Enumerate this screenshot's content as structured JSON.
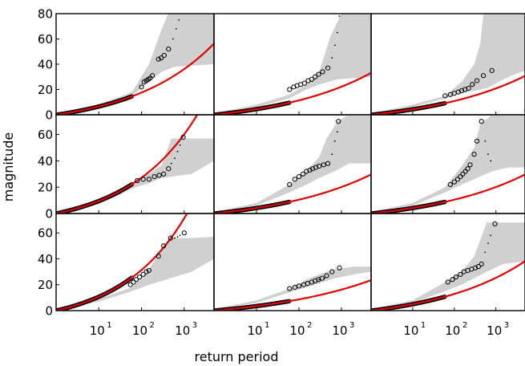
{
  "chart_data": {
    "type": "scatter",
    "layout": {
      "rows": 3,
      "cols": 3
    },
    "xlabel": "return period",
    "ylabel": "magnitude",
    "xscale": "log",
    "xlim": [
      1,
      5000
    ],
    "x_tick_values": [
      10,
      100,
      1000
    ],
    "x_tick_labels": [
      {
        "base": "10",
        "exp": "1"
      },
      {
        "base": "10",
        "exp": "2"
      },
      {
        "base": "10",
        "exp": "3"
      }
    ],
    "row_ylim": [
      [
        0,
        80
      ],
      [
        0,
        75
      ],
      [
        0,
        75
      ]
    ],
    "row_y_ticks": [
      [
        0,
        20,
        40,
        60,
        80
      ],
      [
        0,
        20,
        40,
        60
      ],
      [
        0,
        20,
        40,
        60
      ]
    ],
    "colors": {
      "fit": "#dd0000",
      "band": "#d0d0d0",
      "points": "#000000",
      "frame": "#000000"
    },
    "panels": [
      {
        "row": 0,
        "col": 0,
        "fit": {
          "a": 9.5,
          "b": 4.4
        },
        "band_upper": [
          [
            1,
            1
          ],
          [
            10,
            8
          ],
          [
            60,
            18
          ],
          [
            150,
            40
          ],
          [
            300,
            68
          ],
          [
            420,
            80
          ],
          [
            5000,
            80
          ]
        ],
        "band_lower": [
          [
            1,
            0.5
          ],
          [
            10,
            6
          ],
          [
            60,
            15
          ],
          [
            150,
            26
          ],
          [
            300,
            34
          ],
          [
            600,
            38
          ],
          [
            5000,
            40
          ]
        ],
        "circles": [
          [
            100,
            22
          ],
          [
            115,
            26
          ],
          [
            130,
            27
          ],
          [
            145,
            28
          ],
          [
            160,
            29
          ],
          [
            180,
            31
          ],
          [
            250,
            44
          ],
          [
            290,
            45
          ],
          [
            340,
            47
          ],
          [
            430,
            52
          ]
        ],
        "dots": [
          [
            550,
            60
          ],
          [
            650,
            68
          ],
          [
            750,
            75
          ]
        ]
      },
      {
        "row": 0,
        "col": 1,
        "fit": {
          "a": 8.0,
          "b": 5.2
        },
        "band_upper": [
          [
            1,
            1
          ],
          [
            10,
            8
          ],
          [
            60,
            16
          ],
          [
            150,
            24
          ],
          [
            300,
            34
          ],
          [
            550,
            62
          ],
          [
            1000,
            80
          ],
          [
            5000,
            80
          ]
        ],
        "band_lower": [
          [
            1,
            0.5
          ],
          [
            10,
            6
          ],
          [
            60,
            13
          ],
          [
            150,
            20
          ],
          [
            300,
            24
          ],
          [
            800,
            28
          ],
          [
            5000,
            30
          ]
        ],
        "circles": [
          [
            60,
            20
          ],
          [
            75,
            22
          ],
          [
            90,
            23
          ],
          [
            110,
            24
          ],
          [
            135,
            25
          ],
          [
            165,
            27
          ],
          [
            200,
            28
          ],
          [
            240,
            30
          ],
          [
            290,
            32
          ],
          [
            360,
            34
          ],
          [
            480,
            37
          ]
        ],
        "dots": [
          [
            600,
            45
          ],
          [
            700,
            55
          ],
          [
            800,
            65
          ],
          [
            900,
            78
          ]
        ]
      },
      {
        "row": 0,
        "col": 2,
        "fit": {
          "a": 8.3,
          "b": 5.5
        },
        "band_upper": [
          [
            1,
            1
          ],
          [
            10,
            8
          ],
          [
            60,
            15
          ],
          [
            150,
            26
          ],
          [
            300,
            40
          ],
          [
            420,
            56
          ],
          [
            500,
            80
          ],
          [
            5000,
            80
          ]
        ],
        "band_lower": [
          [
            1,
            0.5
          ],
          [
            10,
            6
          ],
          [
            60,
            13
          ],
          [
            150,
            17
          ],
          [
            300,
            19
          ],
          [
            600,
            21
          ],
          [
            2000,
            30
          ],
          [
            5000,
            35
          ]
        ],
        "circles": [
          [
            60,
            15
          ],
          [
            80,
            16
          ],
          [
            100,
            17
          ],
          [
            125,
            18
          ],
          [
            150,
            19
          ],
          [
            180,
            20
          ],
          [
            220,
            21
          ],
          [
            270,
            24
          ],
          [
            350,
            27
          ],
          [
            500,
            31
          ],
          [
            800,
            35
          ]
        ],
        "dots": [
          [
            200,
            21
          ],
          [
            300,
            24
          ]
        ]
      },
      {
        "row": 1,
        "col": 0,
        "fit": {
          "a": 11.0,
          "b": 3.7
        },
        "band_upper": [
          [
            1,
            1
          ],
          [
            10,
            9
          ],
          [
            60,
            24
          ],
          [
            150,
            30
          ],
          [
            300,
            37
          ],
          [
            500,
            57
          ],
          [
            5000,
            57
          ]
        ],
        "band_lower": [
          [
            1,
            0.5
          ],
          [
            10,
            7
          ],
          [
            60,
            19
          ],
          [
            150,
            23
          ],
          [
            300,
            27
          ],
          [
            1500,
            30
          ],
          [
            5000,
            40
          ]
        ],
        "circles": [
          [
            80,
            25
          ],
          [
            110,
            26
          ],
          [
            150,
            26
          ],
          [
            200,
            28
          ],
          [
            260,
            29
          ],
          [
            330,
            30
          ],
          [
            430,
            34
          ],
          [
            950,
            58
          ]
        ],
        "dots": [
          [
            500,
            38
          ],
          [
            600,
            42
          ],
          [
            700,
            47
          ],
          [
            800,
            52
          ]
        ]
      },
      {
        "row": 1,
        "col": 1,
        "fit": {
          "a": 8.0,
          "b": 5.5
        },
        "band_upper": [
          [
            1,
            1
          ],
          [
            10,
            8
          ],
          [
            60,
            22
          ],
          [
            150,
            32
          ],
          [
            300,
            43
          ],
          [
            450,
            57
          ],
          [
            800,
            70
          ],
          [
            1500,
            75
          ],
          [
            5000,
            75
          ]
        ],
        "band_lower": [
          [
            1,
            0.5
          ],
          [
            10,
            6
          ],
          [
            60,
            16
          ],
          [
            150,
            22
          ],
          [
            300,
            27
          ],
          [
            800,
            33
          ],
          [
            1500,
            38
          ],
          [
            5000,
            38
          ]
        ],
        "circles": [
          [
            60,
            22
          ],
          [
            80,
            26
          ],
          [
            100,
            28
          ],
          [
            125,
            30
          ],
          [
            150,
            32
          ],
          [
            180,
            33
          ],
          [
            210,
            34
          ],
          [
            250,
            35
          ],
          [
            300,
            36
          ],
          [
            380,
            37
          ],
          [
            480,
            38
          ],
          [
            850,
            70
          ]
        ],
        "dots": [
          [
            600,
            45
          ],
          [
            700,
            55
          ],
          [
            800,
            62
          ]
        ]
      },
      {
        "row": 1,
        "col": 2,
        "fit": {
          "a": 8.0,
          "b": 5.5
        },
        "band_upper": [
          [
            1,
            1
          ],
          [
            10,
            8
          ],
          [
            60,
            20
          ],
          [
            150,
            36
          ],
          [
            300,
            50
          ],
          [
            420,
            68
          ],
          [
            800,
            75
          ],
          [
            5000,
            75
          ]
        ],
        "band_lower": [
          [
            1,
            0.5
          ],
          [
            10,
            6
          ],
          [
            60,
            16
          ],
          [
            150,
            22
          ],
          [
            300,
            26
          ],
          [
            800,
            32
          ],
          [
            2000,
            35
          ],
          [
            5000,
            35
          ]
        ],
        "circles": [
          [
            80,
            22
          ],
          [
            100,
            24
          ],
          [
            120,
            26
          ],
          [
            140,
            28
          ],
          [
            160,
            30
          ],
          [
            185,
            32
          ],
          [
            210,
            34
          ],
          [
            240,
            37
          ],
          [
            300,
            45
          ],
          [
            350,
            55
          ],
          [
            450,
            70
          ]
        ],
        "dots": [
          [
            550,
            55
          ],
          [
            650,
            45
          ],
          [
            750,
            40
          ]
        ]
      },
      {
        "row": 2,
        "col": 0,
        "fit": {
          "a": 11.5,
          "b": 3.5
        },
        "band_upper": [
          [
            1,
            1
          ],
          [
            10,
            9
          ],
          [
            60,
            18
          ],
          [
            150,
            32
          ],
          [
            300,
            48
          ],
          [
            500,
            56
          ],
          [
            1500,
            56
          ],
          [
            5000,
            57
          ]
        ],
        "band_lower": [
          [
            1,
            0.5
          ],
          [
            10,
            7
          ],
          [
            60,
            15
          ],
          [
            150,
            20
          ],
          [
            300,
            23
          ],
          [
            600,
            26
          ],
          [
            1500,
            30
          ],
          [
            5000,
            40
          ]
        ],
        "circles": [
          [
            55,
            20
          ],
          [
            65,
            22
          ],
          [
            75,
            24
          ],
          [
            90,
            26
          ],
          [
            110,
            28
          ],
          [
            130,
            30
          ],
          [
            150,
            31
          ],
          [
            250,
            42
          ],
          [
            330,
            50
          ],
          [
            480,
            56
          ],
          [
            1000,
            60
          ]
        ],
        "dots": [
          [
            600,
            56
          ],
          [
            700,
            57
          ],
          [
            800,
            58
          ]
        ]
      },
      {
        "row": 2,
        "col": 1,
        "fit": {
          "a": 7.5,
          "b": 6.0
        },
        "band_upper": [
          [
            1,
            1
          ],
          [
            10,
            8
          ],
          [
            60,
            17
          ],
          [
            150,
            24
          ],
          [
            300,
            28
          ],
          [
            700,
            32
          ],
          [
            2000,
            34
          ],
          [
            5000,
            34
          ]
        ],
        "band_lower": [
          [
            1,
            0.5
          ],
          [
            10,
            6
          ],
          [
            60,
            14
          ],
          [
            150,
            18
          ],
          [
            300,
            21
          ],
          [
            700,
            25
          ],
          [
            2000,
            28
          ],
          [
            5000,
            30
          ]
        ],
        "circles": [
          [
            60,
            17
          ],
          [
            80,
            18
          ],
          [
            100,
            19
          ],
          [
            130,
            20
          ],
          [
            160,
            21
          ],
          [
            200,
            22
          ],
          [
            240,
            23
          ],
          [
            290,
            24
          ],
          [
            350,
            25
          ],
          [
            450,
            27
          ],
          [
            600,
            30
          ],
          [
            900,
            33
          ]
        ],
        "dots": [
          [
            300,
            24
          ],
          [
            400,
            25
          ]
        ]
      },
      {
        "row": 2,
        "col": 2,
        "fit": {
          "a": 8.5,
          "b": 5.0
        },
        "band_upper": [
          [
            1,
            1
          ],
          [
            10,
            8
          ],
          [
            60,
            22
          ],
          [
            150,
            30
          ],
          [
            300,
            42
          ],
          [
            600,
            68
          ],
          [
            5000,
            68
          ]
        ],
        "band_lower": [
          [
            1,
            0.5
          ],
          [
            10,
            6
          ],
          [
            60,
            15
          ],
          [
            150,
            20
          ],
          [
            300,
            25
          ],
          [
            600,
            30
          ],
          [
            1500,
            36
          ],
          [
            5000,
            38
          ]
        ],
        "circles": [
          [
            70,
            22
          ],
          [
            90,
            24
          ],
          [
            110,
            26
          ],
          [
            140,
            28
          ],
          [
            170,
            30
          ],
          [
            210,
            31
          ],
          [
            260,
            32
          ],
          [
            320,
            33
          ],
          [
            380,
            34
          ],
          [
            450,
            36
          ],
          [
            950,
            67
          ]
        ],
        "dots": [
          [
            550,
            45
          ],
          [
            650,
            52
          ],
          [
            750,
            58
          ]
        ]
      }
    ]
  }
}
